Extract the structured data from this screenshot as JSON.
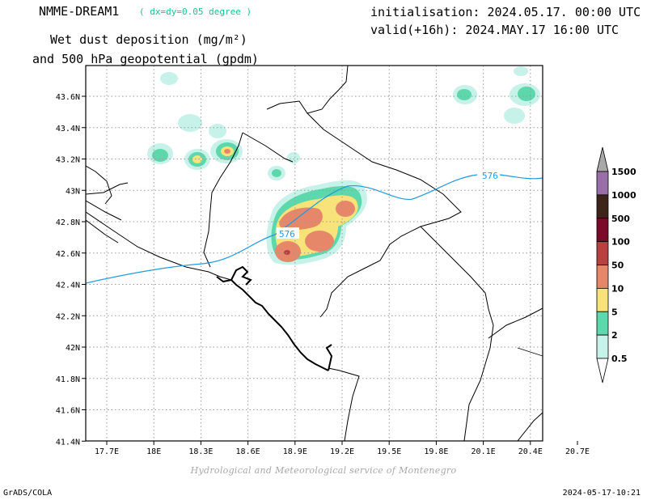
{
  "header": {
    "model": "NMME-DREAM1",
    "resolution": "( dx=dy=0.05 degree )",
    "variable_line1": "Wet dust deposition (mg/m²)",
    "variable_line2": "and 500 hPa geopotential (gpdm)",
    "initialisation": "initialisation: 2024.05.17. 00:00 UTC",
    "valid": "valid(+16h): 2024.MAY.17 16:00 UTC"
  },
  "map": {
    "lon_labels": [
      "17.7E",
      "18E",
      "18.3E",
      "18.6E",
      "18.9E",
      "19.2E",
      "19.5E",
      "19.8E",
      "20.1E",
      "20.4E",
      "20.7E"
    ],
    "lat_labels": [
      "43.6N",
      "43.4N",
      "43.2N",
      "43N",
      "42.8N",
      "42.6N",
      "42.4N",
      "42.2N",
      "42N",
      "41.8N",
      "41.6N",
      "41.4N"
    ],
    "contour_label": "576",
    "gridlines": true
  },
  "legend": {
    "labels": [
      "1500",
      "1000",
      "500",
      "100",
      "50",
      "10",
      "5",
      "2",
      "0.5"
    ],
    "colors": [
      "#996fa8",
      "#3c2418",
      "#7a0a2a",
      "#b84040",
      "#e6876a",
      "#f8e37a",
      "#5cd8ac",
      "#c6f2ea"
    ],
    "top_arrow_color": "#a8a8a8"
  },
  "colors": {
    "contour": "#1e9be0",
    "coast": "#000000",
    "level_0_5": "#c6f2ea",
    "level_2": "#5cd8ac",
    "level_5": "#f8e37a",
    "level_10": "#e6876a",
    "level_50": "#b84040"
  },
  "footer": {
    "credit": "Hydrological and Meteorological service of Montenegro",
    "software": "GrADS/COLA",
    "timestamp": "2024-05-17-10:21"
  }
}
